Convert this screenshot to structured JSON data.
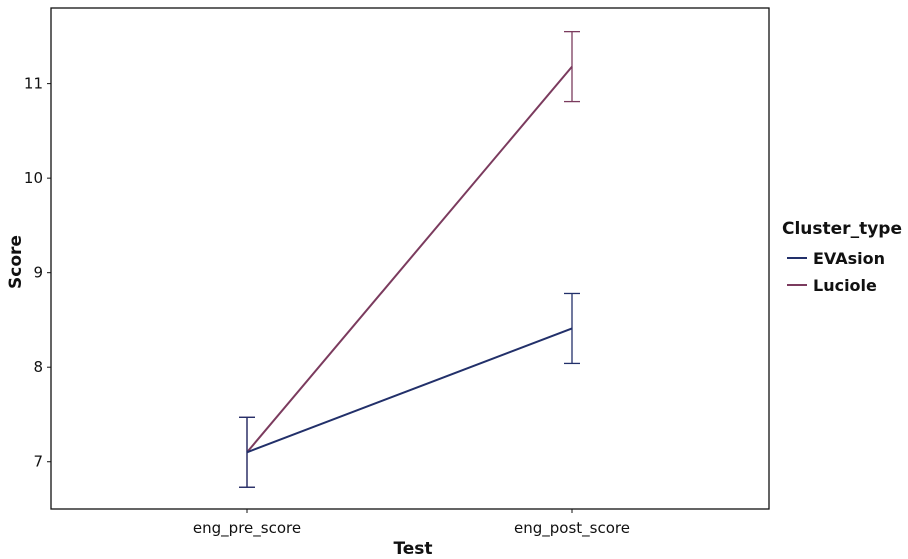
{
  "chart_data": {
    "type": "line",
    "title": "",
    "xlabel": "Test",
    "ylabel": "Score",
    "categories": [
      "eng_pre_score",
      "eng_post_score"
    ],
    "ylim": [
      6.5,
      11.8
    ],
    "yticks": [
      7,
      8,
      9,
      10,
      11
    ],
    "grid": false,
    "legend": {
      "title": "Cluster_type",
      "placement": "right"
    },
    "series": [
      {
        "name": "Luciole",
        "color": "#7b3b5e",
        "values": [
          7.1,
          11.18
        ],
        "error_low": [
          6.73,
          10.81
        ],
        "error_high": [
          7.47,
          11.55
        ]
      },
      {
        "name": "EVAsion",
        "color": "#22306a",
        "values": [
          7.1,
          8.41
        ],
        "error_low": [
          6.73,
          8.04
        ],
        "error_high": [
          7.47,
          8.78
        ]
      }
    ],
    "legend_order": [
      "EVAsion",
      "Luciole"
    ]
  }
}
